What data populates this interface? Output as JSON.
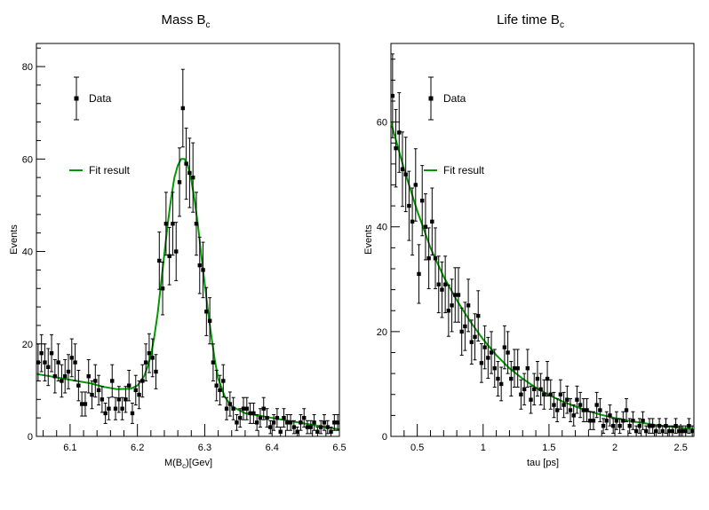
{
  "chart_data": [
    {
      "type": "scatter",
      "title": "Mass B",
      "title_sub": "c",
      "xlabel_pre": "M(B",
      "xlabel_sub": "c",
      "xlabel_post": ")[Gev]",
      "ylabel": "Events",
      "xlim": [
        6.05,
        6.5
      ],
      "ylim": [
        0,
        85
      ],
      "xticks": [
        6.1,
        6.2,
        6.3,
        6.4,
        6.5
      ],
      "xtick_labels": [
        "6.1",
        "6.2",
        "6.3",
        "6.4",
        "6.5"
      ],
      "yticks": [
        0,
        20,
        40,
        60,
        80
      ],
      "ytick_labels": [
        "0",
        "20",
        "40",
        "60",
        "80"
      ],
      "legend": {
        "position": "top-left",
        "data_label": "Data",
        "fit_label": "Fit result"
      },
      "colors": {
        "data": "#000000",
        "fit": "#009900"
      },
      "grid": false,
      "series": [
        {
          "name": "Data",
          "kind": "points_with_errors",
          "x": [
            6.0525,
            6.0575,
            6.0625,
            6.0675,
            6.0725,
            6.0775,
            6.0825,
            6.0875,
            6.0925,
            6.0975,
            6.1025,
            6.1075,
            6.1125,
            6.1175,
            6.1225,
            6.1275,
            6.1325,
            6.1375,
            6.1425,
            6.1475,
            6.1525,
            6.1575,
            6.1625,
            6.1675,
            6.1725,
            6.1775,
            6.1825,
            6.1875,
            6.1925,
            6.1975,
            6.2025,
            6.2075,
            6.2125,
            6.2175,
            6.2225,
            6.2275,
            6.2325,
            6.2375,
            6.2425,
            6.2475,
            6.2525,
            6.2575,
            6.2625,
            6.2675,
            6.2725,
            6.2775,
            6.2825,
            6.2875,
            6.2925,
            6.2975,
            6.3025,
            6.3075,
            6.3125,
            6.3175,
            6.3225,
            6.3275,
            6.3325,
            6.3375,
            6.3425,
            6.3475,
            6.3525,
            6.3575,
            6.3625,
            6.3675,
            6.3725,
            6.3775,
            6.3825,
            6.3875,
            6.3925,
            6.3975,
            6.4025,
            6.4075,
            6.4125,
            6.4175,
            6.4225,
            6.4275,
            6.4325,
            6.4375,
            6.4425,
            6.4475,
            6.4525,
            6.4575,
            6.4625,
            6.4675,
            6.4725,
            6.4775,
            6.4825,
            6.4875,
            6.4925,
            6.4975
          ],
          "y": [
            16,
            18,
            16,
            15,
            18,
            13,
            16,
            12,
            13,
            14,
            17,
            16,
            11,
            7,
            7,
            13,
            9,
            12,
            10,
            8,
            5,
            6,
            12,
            6,
            8,
            6,
            8,
            11,
            5,
            10,
            9,
            12,
            16,
            18,
            17,
            14,
            38,
            32,
            46,
            39,
            46,
            40,
            55,
            71,
            59,
            57,
            56,
            46,
            37,
            36,
            27,
            25,
            16,
            11,
            10,
            12,
            6,
            7,
            6,
            3,
            4,
            6,
            6,
            5,
            5,
            3,
            4,
            6,
            4,
            2,
            3,
            4,
            1,
            4,
            3,
            3,
            2,
            1,
            3,
            4,
            2,
            2,
            3,
            1,
            2,
            3,
            2,
            1,
            3,
            3
          ],
          "err": [
            4,
            4,
            4,
            4,
            4,
            3.6,
            4,
            3.5,
            3.6,
            3.7,
            4.1,
            4,
            3.3,
            2.6,
            2.6,
            3.6,
            3,
            3.5,
            3.2,
            2.8,
            2.2,
            2.4,
            3.5,
            2.4,
            2.8,
            2.4,
            2.8,
            3.3,
            2.2,
            3.2,
            3,
            3.5,
            4,
            4.2,
            4.1,
            3.7,
            6.2,
            5.7,
            6.8,
            6.2,
            6.8,
            6.3,
            7.4,
            8.4,
            7.7,
            7.5,
            7.5,
            6.8,
            6.1,
            6,
            5.2,
            5,
            4,
            3.3,
            3.2,
            3.5,
            2.4,
            2.6,
            2.4,
            1.7,
            2,
            2.4,
            2.4,
            2.2,
            2.2,
            1.7,
            2,
            2.4,
            2,
            1.4,
            1.7,
            2,
            1,
            2,
            1.7,
            1.7,
            1.4,
            1,
            1.7,
            2,
            1.4,
            1.4,
            1.7,
            1,
            1.4,
            1.7,
            1.4,
            1,
            1.7,
            1.7
          ]
        },
        {
          "name": "Fit result",
          "kind": "curve",
          "x": [
            6.05,
            6.07,
            6.09,
            6.11,
            6.13,
            6.15,
            6.17,
            6.19,
            6.2,
            6.21,
            6.215,
            6.22,
            6.225,
            6.23,
            6.235,
            6.24,
            6.245,
            6.25,
            6.255,
            6.26,
            6.265,
            6.27,
            6.275,
            6.28,
            6.285,
            6.29,
            6.295,
            6.3,
            6.305,
            6.31,
            6.315,
            6.32,
            6.33,
            6.34,
            6.36,
            6.38,
            6.4,
            6.42,
            6.44,
            6.46,
            6.48,
            6.5
          ],
          "y": [
            13.5,
            13,
            12.5,
            12,
            11.5,
            10.7,
            10.2,
            10.3,
            11,
            13,
            15,
            17.5,
            21.5,
            26.5,
            33,
            39.5,
            46,
            51.5,
            56,
            58.6,
            60,
            60,
            58.5,
            55.5,
            51,
            45.5,
            39,
            33,
            27,
            21.5,
            16.5,
            12.5,
            8.5,
            6.5,
            5,
            4.5,
            4,
            3.5,
            3,
            2.5,
            2,
            1.5
          ]
        }
      ]
    },
    {
      "type": "scatter",
      "title": "Life time B",
      "title_sub": "c",
      "xlabel_pre": "tau [ps]",
      "xlabel_sub": "",
      "xlabel_post": "",
      "ylabel": "Events",
      "xlim": [
        0.3,
        2.6
      ],
      "ylim": [
        0,
        75
      ],
      "xticks": [
        0.5,
        1,
        1.5,
        2,
        2.5
      ],
      "xtick_labels": [
        "0.5",
        "1",
        "1.5",
        "2",
        "2.5"
      ],
      "yticks": [
        0,
        20,
        40,
        60
      ],
      "ytick_labels": [
        "0",
        "20",
        "40",
        "60"
      ],
      "legend": {
        "position": "top-left",
        "data_label": "Data",
        "fit_label": "Fit result"
      },
      "colors": {
        "data": "#000000",
        "fit": "#009900"
      },
      "grid": false,
      "series": [
        {
          "name": "Data",
          "kind": "points_with_errors",
          "x": [
            0.3125,
            0.3375,
            0.3625,
            0.3875,
            0.4125,
            0.4375,
            0.4625,
            0.4875,
            0.5125,
            0.5375,
            0.5625,
            0.5875,
            0.6125,
            0.6375,
            0.6625,
            0.6875,
            0.7125,
            0.7375,
            0.7625,
            0.7875,
            0.8125,
            0.8375,
            0.8625,
            0.8875,
            0.9125,
            0.9375,
            0.9625,
            0.9875,
            1.0125,
            1.0375,
            1.0625,
            1.0875,
            1.1125,
            1.1375,
            1.1625,
            1.1875,
            1.2125,
            1.2375,
            1.2625,
            1.2875,
            1.3125,
            1.3375,
            1.3625,
            1.3875,
            1.4125,
            1.4375,
            1.4625,
            1.4875,
            1.5125,
            1.5375,
            1.5625,
            1.5875,
            1.6125,
            1.6375,
            1.6625,
            1.6875,
            1.7125,
            1.7375,
            1.7625,
            1.7875,
            1.8125,
            1.8375,
            1.8625,
            1.8875,
            1.9125,
            1.9375,
            1.9625,
            1.9875,
            2.0125,
            2.0375,
            2.0625,
            2.0875,
            2.1125,
            2.1375,
            2.1625,
            2.1875,
            2.2125,
            2.2375,
            2.2625,
            2.2875,
            2.3125,
            2.3375,
            2.3625,
            2.3875,
            2.4125,
            2.4375,
            2.4625,
            2.4875,
            2.5125,
            2.5375,
            2.5625,
            2.5875
          ],
          "y": [
            65,
            55,
            58,
            51,
            50,
            44,
            41,
            48,
            31,
            45,
            40,
            34,
            41,
            34,
            29,
            28,
            29,
            24,
            25,
            27,
            27,
            20,
            21,
            25,
            18,
            19,
            23,
            14,
            17,
            15,
            16,
            13,
            11,
            10,
            17,
            16,
            11,
            13,
            13,
            8,
            9,
            13,
            7,
            9,
            11,
            9,
            8,
            11,
            8,
            6,
            5,
            8,
            6,
            7,
            5,
            4,
            7,
            6,
            5,
            5,
            3,
            3,
            6,
            5,
            2,
            3,
            4,
            2,
            3,
            2,
            3,
            5,
            2,
            3,
            1,
            2,
            3,
            1,
            2,
            2,
            1,
            2,
            1,
            2,
            1,
            1,
            2,
            1,
            1,
            1,
            2,
            1
          ],
          "err": [
            8,
            7.4,
            7.6,
            7.1,
            7.1,
            6.6,
            6.4,
            6.9,
            5.6,
            6.7,
            6.3,
            5.8,
            6.4,
            5.8,
            5.4,
            5.3,
            5.4,
            4.9,
            5,
            5.2,
            5.2,
            4.5,
            4.6,
            5,
            4.2,
            4.4,
            4.8,
            3.7,
            4.1,
            3.9,
            4,
            3.6,
            3.3,
            3.2,
            4.1,
            4,
            3.3,
            3.6,
            3.6,
            2.8,
            3,
            3.6,
            2.6,
            3,
            3.3,
            3,
            2.8,
            3.3,
            2.8,
            2.4,
            2.2,
            2.8,
            2.4,
            2.6,
            2.2,
            2,
            2.6,
            2.4,
            2.2,
            2.2,
            1.7,
            1.7,
            2.4,
            2.2,
            1.4,
            1.7,
            2,
            1.4,
            1.7,
            1.4,
            1.7,
            2.2,
            1.4,
            1.7,
            1,
            1.4,
            1.7,
            1,
            1.4,
            1.4,
            1,
            1.4,
            1,
            1.4,
            1,
            1,
            1.4,
            1,
            1,
            1,
            1.4,
            1
          ]
        },
        {
          "name": "Fit result",
          "kind": "curve",
          "x": [
            0.3,
            0.4,
            0.5,
            0.6,
            0.7,
            0.8,
            0.9,
            1.0,
            1.1,
            1.2,
            1.3,
            1.4,
            1.5,
            1.6,
            1.7,
            1.8,
            1.9,
            2.0,
            2.1,
            2.2,
            2.3,
            2.4,
            2.5,
            2.6
          ],
          "y": [
            60,
            51,
            43,
            36,
            30.5,
            26,
            22,
            18.5,
            15.5,
            13,
            11,
            9.3,
            7.9,
            6.7,
            5.7,
            4.8,
            4.1,
            3.5,
            3,
            2.6,
            2.2,
            1.9,
            1.6,
            1.4
          ]
        }
      ]
    }
  ]
}
